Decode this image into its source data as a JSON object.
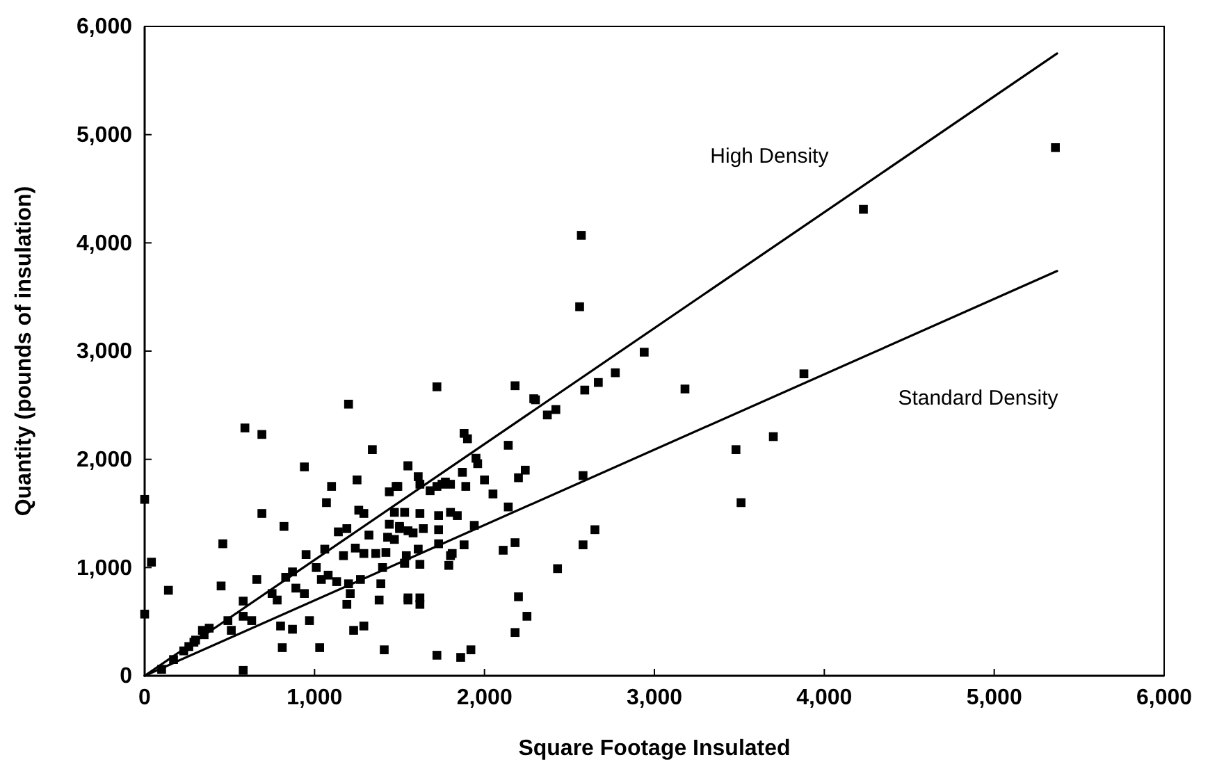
{
  "chart_data": {
    "type": "scatter",
    "xlabel": "Square Footage Insulated",
    "ylabel": "Quantity (pounds of insulation)",
    "xlim": [
      0,
      6000
    ],
    "ylim": [
      0,
      6000
    ],
    "xticks": [
      0,
      {
        "value": 1000,
        "label": "1,000"
      },
      {
        "value": 2000,
        "label": "2,000"
      },
      {
        "value": 3000,
        "label": "3,000"
      },
      {
        "value": 4000,
        "label": "4,000"
      },
      {
        "value": 5000,
        "label": "5,000"
      },
      {
        "value": 6000,
        "label": "6,000"
      }
    ],
    "yticks": [
      0,
      {
        "value": 1000,
        "label": "1,000"
      },
      {
        "value": 2000,
        "label": "2,000"
      },
      {
        "value": 3000,
        "label": "3,000"
      },
      {
        "value": 4000,
        "label": "4,000"
      },
      {
        "value": 5000,
        "label": "5,000"
      },
      {
        "value": 6000,
        "label": "6,000"
      }
    ],
    "grid": false,
    "marker": "square",
    "series": [
      {
        "color": "#000000",
        "x": [
          1200,
          590,
          690,
          1340,
          940,
          1250,
          1100,
          1440,
          1480,
          1550,
          690,
          1070,
          1260,
          1290,
          820,
          1140,
          1190,
          460,
          1320,
          1430,
          1500,
          1440,
          1550,
          950,
          1060,
          1170,
          1240,
          1290,
          1360,
          1420,
          1530,
          1540,
          40,
          140,
          450,
          660,
          870,
          830,
          750,
          780,
          890,
          940,
          1010,
          1040,
          1080,
          1130,
          1200,
          1270,
          1210,
          1190,
          1380,
          1390,
          1550,
          1400,
          580,
          630,
          580,
          490,
          510,
          340,
          380,
          290,
          260,
          870,
          800,
          970,
          1030,
          810,
          1230,
          1290,
          1410,
          0,
          0,
          2300,
          2370,
          2420,
          1880,
          1900,
          2140,
          1950,
          1960,
          1550,
          1610,
          1620,
          2240,
          2200,
          1870,
          1890,
          1720,
          1750,
          1770,
          1800,
          1680,
          2000,
          2050,
          1490,
          2140,
          2580,
          1470,
          1530,
          1620,
          1730,
          1800,
          1840,
          1500,
          1580,
          1640,
          1730,
          1940,
          1470,
          1880,
          1810,
          1610,
          1730,
          1800,
          2180,
          2110,
          2650,
          2580,
          2430,
          1530,
          1620,
          1790,
          1550,
          1620,
          1620,
          2200,
          2250,
          2180,
          1720,
          1860,
          1920,
          580,
          2570,
          2560,
          1720,
          2180,
          2290,
          2590,
          2670,
          2770,
          5360,
          4230,
          2940,
          3180,
          3880,
          3700,
          3480,
          3510,
          100,
          170,
          230,
          300,
          350
        ],
        "values": [
          2510,
          2290,
          2230,
          2090,
          1930,
          1810,
          1750,
          1700,
          1750,
          1940,
          1500,
          1600,
          1530,
          1500,
          1380,
          1330,
          1360,
          1220,
          1300,
          1280,
          1380,
          1400,
          1340,
          1120,
          1170,
          1110,
          1180,
          1130,
          1130,
          1140,
          1040,
          1110,
          1050,
          790,
          830,
          890,
          960,
          910,
          760,
          700,
          810,
          760,
          1000,
          890,
          930,
          870,
          850,
          890,
          760,
          660,
          700,
          850,
          720,
          1000,
          690,
          510,
          550,
          510,
          420,
          420,
          440,
          310,
          270,
          430,
          460,
          510,
          260,
          260,
          420,
          460,
          240,
          1630,
          570,
          2550,
          2410,
          2460,
          2240,
          2190,
          2130,
          2010,
          1960,
          1940,
          1840,
          1770,
          1900,
          1830,
          1880,
          1750,
          1750,
          1770,
          1790,
          1770,
          1710,
          1810,
          1680,
          1750,
          1560,
          1850,
          1510,
          1510,
          1500,
          1480,
          1510,
          1480,
          1360,
          1320,
          1360,
          1350,
          1390,
          1260,
          1210,
          1130,
          1170,
          1220,
          1110,
          1230,
          1160,
          1350,
          1210,
          990,
          1040,
          1030,
          1020,
          700,
          720,
          660,
          730,
          550,
          400,
          190,
          170,
          240,
          50,
          4070,
          3410,
          2670,
          2680,
          2560,
          2640,
          2710,
          2800,
          4880,
          4310,
          2990,
          2650,
          2790,
          2210,
          2090,
          1600,
          60,
          150,
          230,
          330,
          380
        ]
      },
      {
        "type": "line",
        "name": "High Density",
        "color": "#000000",
        "x": [
          0,
          5370
        ],
        "values": [
          0,
          5750
        ],
        "marker": "none",
        "line_style": "solid"
      },
      {
        "type": "line",
        "name": "Standard Density",
        "color": "#000000",
        "x": [
          0,
          5370
        ],
        "values": [
          0,
          3740
        ],
        "marker": "none",
        "line_style": "solid"
      }
    ]
  }
}
